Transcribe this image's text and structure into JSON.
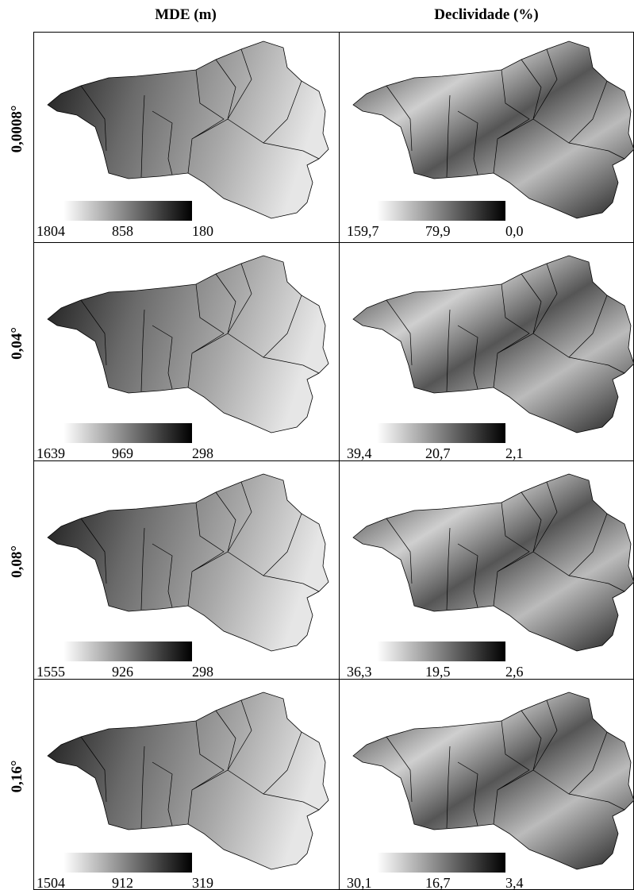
{
  "columns": [
    "MDE (m)",
    "Declividade (%)"
  ],
  "rows": [
    {
      "label": "0,0008°",
      "panels": [
        {
          "legend": [
            "1804",
            "858",
            "180"
          ]
        },
        {
          "legend": [
            "159,7",
            "79,9",
            "0,0"
          ]
        }
      ]
    },
    {
      "label": "0,04°",
      "panels": [
        {
          "legend": [
            "1639",
            "969",
            "298"
          ]
        },
        {
          "legend": [
            "39,4",
            "20,7",
            "2,1"
          ]
        }
      ]
    },
    {
      "label": "0,08°",
      "panels": [
        {
          "legend": [
            "1555",
            "926",
            "298"
          ]
        },
        {
          "legend": [
            "36,3",
            "19,5",
            "2,6"
          ]
        }
      ]
    },
    {
      "label": "0,16°",
      "panels": [
        {
          "legend": [
            "1504",
            "912",
            "319"
          ]
        },
        {
          "legend": [
            "30,1",
            "16,7",
            "3,4"
          ]
        }
      ]
    }
  ]
}
